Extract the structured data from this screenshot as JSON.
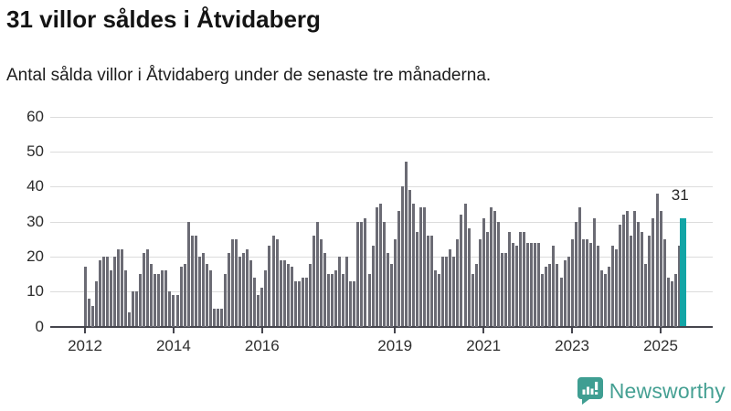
{
  "header": {
    "title": "31 villor såldes i Åtvidaberg",
    "subtitle": "Antal sålda villor i Åtvidaberg under de senaste tre månaderna."
  },
  "chart_data": {
    "type": "bar",
    "title": "31 villor såldes i Åtvidaberg",
    "subtitle": "Antal sålda villor i Åtvidaberg under de senaste tre månaderna.",
    "xlabel": "",
    "ylabel": "",
    "ylim": [
      0,
      60
    ],
    "grid": true,
    "legend": "none",
    "start_month": "2012-01",
    "frequency": "monthly",
    "y_ticks": [
      0,
      10,
      20,
      30,
      40,
      50,
      60
    ],
    "x_ticks": [
      {
        "label": "2012",
        "month_index": 0
      },
      {
        "label": "2014",
        "month_index": 24
      },
      {
        "label": "2016",
        "month_index": 48
      },
      {
        "label": "2019",
        "month_index": 84
      },
      {
        "label": "2021",
        "month_index": 108
      },
      {
        "label": "2023",
        "month_index": 132
      },
      {
        "label": "2025",
        "month_index": 156
      }
    ],
    "values": [
      17,
      8,
      6,
      13,
      19,
      20,
      20,
      16,
      20,
      22,
      22,
      16,
      4,
      10,
      10,
      15,
      21,
      22,
      18,
      15,
      15,
      16,
      16,
      10,
      9,
      9,
      17,
      18,
      30,
      26,
      26,
      20,
      21,
      18,
      16,
      5,
      5,
      5,
      15,
      21,
      25,
      25,
      20,
      21,
      22,
      19,
      14,
      9,
      11,
      16,
      23,
      26,
      25,
      19,
      19,
      18,
      17,
      13,
      13,
      14,
      14,
      18,
      26,
      30,
      25,
      21,
      15,
      15,
      16,
      20,
      15,
      20,
      13,
      13,
      30,
      30,
      31,
      15,
      23,
      34,
      35,
      30,
      21,
      18,
      25,
      33,
      40,
      47,
      39,
      35,
      27,
      34,
      34,
      26,
      26,
      16,
      15,
      20,
      20,
      22,
      20,
      25,
      32,
      35,
      28,
      15,
      18,
      25,
      31,
      27,
      34,
      33,
      30,
      21,
      21,
      27,
      24,
      23,
      27,
      27,
      24,
      24,
      24,
      24,
      15,
      17,
      18,
      23,
      18,
      14,
      19,
      20,
      25,
      30,
      34,
      25,
      25,
      24,
      31,
      23,
      16,
      15,
      17,
      23,
      22,
      29,
      32,
      33,
      26,
      33,
      30,
      27,
      18,
      26,
      31,
      38,
      33,
      25,
      14,
      13,
      15,
      23,
      31
    ],
    "highlight_last_bar": true,
    "highlight_value_label": "31",
    "bar_color": "#6b6b74",
    "highlight_color": "#12a5a6",
    "gridline_color": "#dcdcdc",
    "axis_color": "#45454d"
  },
  "annotation": {
    "label": "31"
  },
  "footer": {
    "brand": "Newsworthy",
    "brand_color": "#45a093"
  }
}
